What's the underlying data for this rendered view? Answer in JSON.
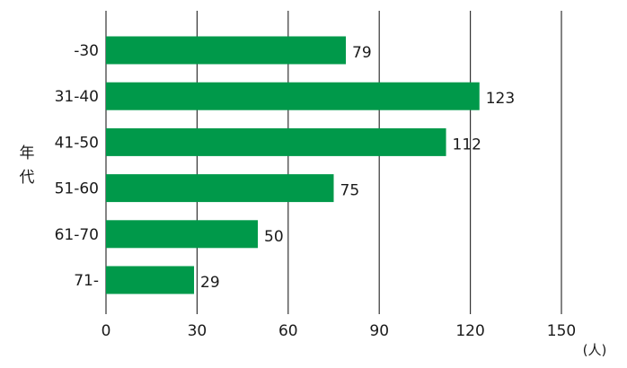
{
  "chart_data": {
    "type": "bar",
    "orientation": "horizontal",
    "categories": [
      "-30",
      "31-40",
      "41-50",
      "51-60",
      "61-70",
      "71-"
    ],
    "values": [
      79,
      123,
      112,
      75,
      50,
      29
    ],
    "value_labels": [
      "79",
      "123",
      "112",
      "75",
      "50",
      "29"
    ],
    "ylabel_chars": [
      "年",
      "代"
    ],
    "xlabel": "",
    "unit": "(人)",
    "xlim": [
      0,
      150
    ],
    "xticks": [
      0,
      30,
      60,
      90,
      120,
      150
    ],
    "xtick_labels": [
      "0",
      "30",
      "60",
      "90",
      "120",
      "150"
    ],
    "grid": true,
    "bar_color": "#00994a",
    "text_color": "#1a1a1a",
    "grid_color": "#333333"
  }
}
